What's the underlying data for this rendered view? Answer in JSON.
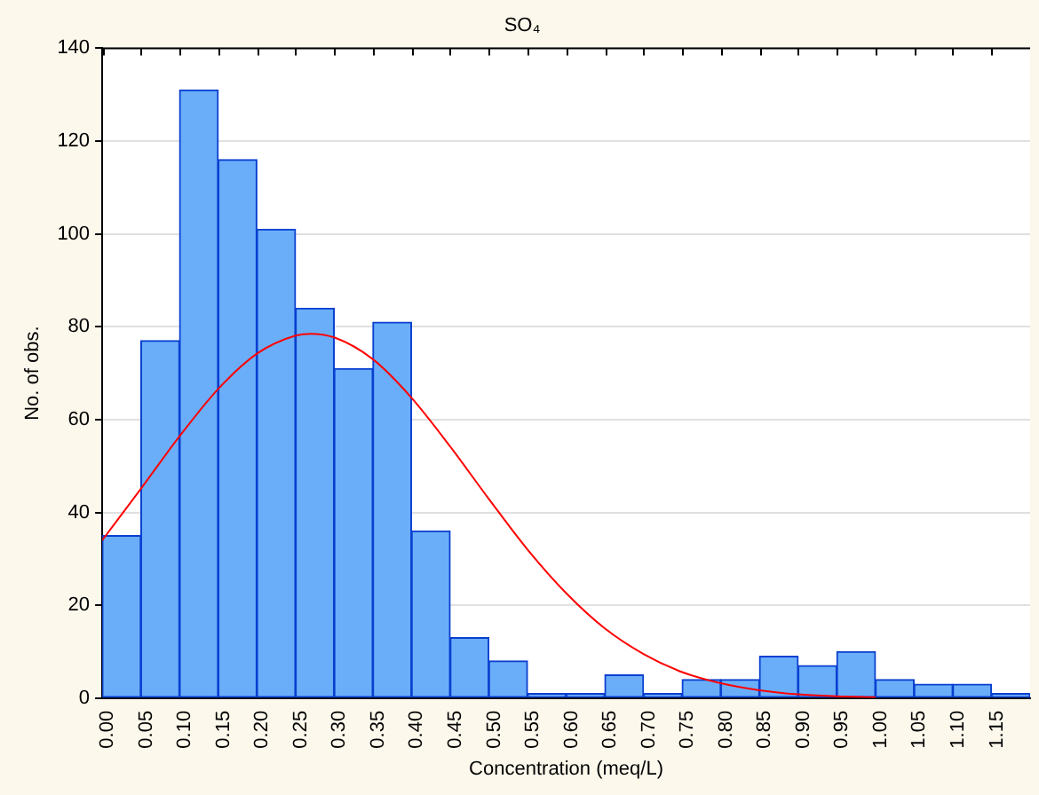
{
  "chart_data": {
    "type": "histogram",
    "title": "SO₄",
    "xlabel": "Concentration (meq/L)",
    "ylabel": "No. of obs.",
    "bins": [
      0,
      0.05,
      0.1,
      0.15,
      0.2,
      0.25,
      0.3,
      0.35,
      0.4,
      0.45,
      0.5,
      0.55,
      0.6,
      0.65,
      0.7,
      0.75,
      0.8,
      0.85,
      0.9,
      0.95,
      1.0,
      1.05,
      1.1,
      1.15,
      1.2
    ],
    "series": [
      {
        "color": "#6aaefa",
        "values": [
          35,
          77,
          131,
          116,
          101,
          84,
          71,
          81,
          36,
          13,
          8,
          1,
          1,
          5,
          1,
          4,
          4,
          9,
          7,
          10,
          4,
          3,
          3,
          1
        ]
      },
      {
        "type": "line",
        "color": "#ff0000",
        "x": [
          0,
          0.05,
          0.1,
          0.15,
          0.2,
          0.25,
          0.27,
          0.3,
          0.35,
          0.4,
          0.45,
          0.5,
          0.55,
          0.6,
          0.65,
          0.7,
          0.75,
          0.8,
          0.85,
          0.9,
          0.95,
          1.0
        ],
        "values": [
          34,
          45.1,
          56.4,
          66.6,
          74.2,
          78.1,
          78.5,
          77.7,
          73,
          64.7,
          54.2,
          42.9,
          32,
          22.6,
          15,
          9.5,
          5.6,
          3.2,
          1.7,
          0.8,
          0.4,
          0.2
        ]
      }
    ],
    "xlim": [
      0,
      1.2
    ],
    "xticks": [
      {
        "value": 0,
        "label": "0.00"
      },
      {
        "value": 0.05,
        "label": "0.05"
      },
      {
        "value": 0.1,
        "label": "0.10"
      },
      {
        "value": 0.15,
        "label": "0.15"
      },
      {
        "value": 0.2,
        "label": "0.20"
      },
      {
        "value": 0.25,
        "label": "0.25"
      },
      {
        "value": 0.3,
        "label": "0.30"
      },
      {
        "value": 0.35,
        "label": "0.35"
      },
      {
        "value": 0.4,
        "label": "0.40"
      },
      {
        "value": 0.45,
        "label": "0.45"
      },
      {
        "value": 0.5,
        "label": "0.50"
      },
      {
        "value": 0.55,
        "label": "0.55"
      },
      {
        "value": 0.6,
        "label": "0.60"
      },
      {
        "value": 0.65,
        "label": "0.65"
      },
      {
        "value": 0.7,
        "label": "0.70"
      },
      {
        "value": 0.75,
        "label": "0.75"
      },
      {
        "value": 0.8,
        "label": "0.80"
      },
      {
        "value": 0.85,
        "label": "0.85"
      },
      {
        "value": 0.9,
        "label": "0.90"
      },
      {
        "value": 0.95,
        "label": "0.95"
      },
      {
        "value": 1.0,
        "label": "1.00"
      },
      {
        "value": 1.05,
        "label": "1.05"
      },
      {
        "value": 1.1,
        "label": "1.10"
      },
      {
        "value": 1.15,
        "label": "1.15"
      }
    ],
    "ylim": [
      0,
      140
    ],
    "yticks": [
      0,
      20,
      40,
      60,
      80,
      100,
      120,
      140
    ],
    "grid": "y",
    "legend": false,
    "marker": "none"
  }
}
